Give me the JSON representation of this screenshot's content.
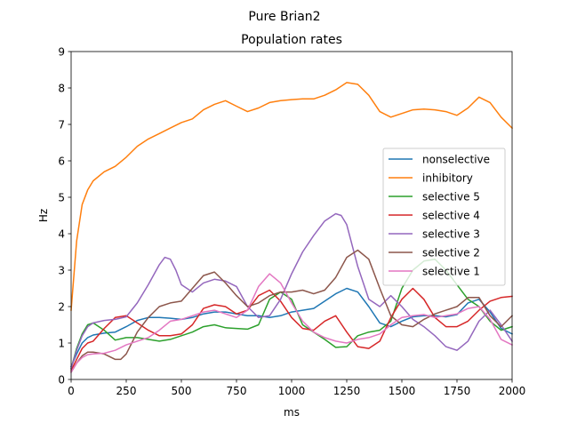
{
  "suptitle": "Pure Brian2",
  "chart_data": {
    "type": "line",
    "title": "Population rates",
    "xlabel": "ms",
    "ylabel": "Hz",
    "xlim": [
      0,
      2000
    ],
    "ylim": [
      0,
      9
    ],
    "xticks": [
      0,
      250,
      500,
      750,
      1000,
      1250,
      1500,
      1750,
      2000
    ],
    "yticks": [
      0,
      1,
      2,
      3,
      4,
      5,
      6,
      7,
      8,
      9
    ],
    "grid": false,
    "legend_position": "center-right",
    "series": [
      {
        "name": "nonselective",
        "color": "#1f77b4",
        "x": [
          0,
          25,
          50,
          75,
          100,
          150,
          200,
          250,
          300,
          350,
          400,
          450,
          500,
          550,
          600,
          650,
          700,
          750,
          800,
          850,
          900,
          950,
          1000,
          1050,
          1100,
          1150,
          1200,
          1250,
          1300,
          1350,
          1400,
          1450,
          1500,
          1550,
          1600,
          1650,
          1700,
          1750,
          1800,
          1850,
          1900,
          1950,
          2000
        ],
        "values": [
          0.35,
          0.7,
          1.0,
          1.15,
          1.22,
          1.27,
          1.3,
          1.45,
          1.62,
          1.7,
          1.7,
          1.68,
          1.65,
          1.7,
          1.8,
          1.85,
          1.85,
          1.8,
          1.75,
          1.75,
          1.7,
          1.75,
          1.85,
          1.9,
          1.95,
          2.15,
          2.35,
          2.5,
          2.4,
          2.0,
          1.55,
          1.45,
          1.6,
          1.72,
          1.75,
          1.75,
          1.72,
          1.78,
          2.1,
          2.2,
          1.85,
          1.4,
          1.25
        ]
      },
      {
        "name": "inhibitory",
        "color": "#ff7f0e",
        "x": [
          0,
          25,
          50,
          75,
          100,
          150,
          200,
          250,
          300,
          350,
          400,
          450,
          500,
          550,
          600,
          650,
          700,
          750,
          800,
          850,
          900,
          950,
          1000,
          1050,
          1100,
          1150,
          1200,
          1250,
          1300,
          1350,
          1400,
          1450,
          1500,
          1550,
          1600,
          1650,
          1700,
          1750,
          1800,
          1850,
          1900,
          1950,
          2000
        ],
        "values": [
          1.9,
          3.8,
          4.8,
          5.2,
          5.45,
          5.7,
          5.85,
          6.1,
          6.4,
          6.6,
          6.75,
          6.9,
          7.05,
          7.15,
          7.4,
          7.55,
          7.65,
          7.5,
          7.35,
          7.45,
          7.6,
          7.65,
          7.68,
          7.7,
          7.7,
          7.8,
          7.95,
          8.15,
          8.1,
          7.8,
          7.35,
          7.2,
          7.3,
          7.4,
          7.42,
          7.4,
          7.35,
          7.25,
          7.45,
          7.75,
          7.6,
          7.2,
          6.9
        ]
      },
      {
        "name": "selective 5",
        "color": "#2ca02c",
        "x": [
          0,
          25,
          50,
          75,
          100,
          150,
          200,
          250,
          300,
          350,
          400,
          450,
          500,
          550,
          600,
          650,
          700,
          750,
          800,
          850,
          900,
          950,
          1000,
          1050,
          1100,
          1150,
          1200,
          1250,
          1300,
          1350,
          1400,
          1450,
          1500,
          1550,
          1600,
          1650,
          1700,
          1750,
          1800,
          1850,
          1900,
          1950,
          2000
        ],
        "values": [
          0.3,
          0.85,
          1.25,
          1.5,
          1.55,
          1.35,
          1.08,
          1.15,
          1.15,
          1.1,
          1.05,
          1.1,
          1.2,
          1.3,
          1.45,
          1.5,
          1.42,
          1.4,
          1.38,
          1.5,
          2.2,
          2.4,
          2.2,
          1.5,
          1.3,
          1.1,
          0.88,
          0.9,
          1.2,
          1.3,
          1.35,
          1.6,
          2.5,
          3.0,
          3.25,
          3.3,
          3.0,
          2.6,
          2.2,
          2.0,
          1.6,
          1.35,
          1.45
        ]
      },
      {
        "name": "selective 4",
        "color": "#d62728",
        "x": [
          0,
          25,
          50,
          75,
          100,
          150,
          200,
          250,
          300,
          350,
          400,
          450,
          500,
          550,
          600,
          650,
          700,
          750,
          800,
          850,
          900,
          950,
          1000,
          1050,
          1100,
          1150,
          1200,
          1250,
          1300,
          1350,
          1400,
          1450,
          1500,
          1550,
          1600,
          1650,
          1700,
          1750,
          1800,
          1850,
          1900,
          1950,
          2000
        ],
        "values": [
          0.25,
          0.55,
          0.85,
          1.0,
          1.05,
          1.4,
          1.7,
          1.75,
          1.55,
          1.35,
          1.2,
          1.2,
          1.25,
          1.5,
          1.95,
          2.05,
          2.0,
          1.8,
          1.9,
          2.3,
          2.45,
          2.15,
          1.7,
          1.4,
          1.35,
          1.6,
          1.75,
          1.3,
          0.9,
          0.85,
          1.05,
          1.7,
          2.2,
          2.5,
          2.2,
          1.7,
          1.45,
          1.45,
          1.6,
          1.9,
          2.15,
          2.25,
          2.28
        ]
      },
      {
        "name": "selective 3",
        "color": "#9467bd",
        "x": [
          0,
          25,
          50,
          75,
          100,
          150,
          200,
          250,
          300,
          350,
          400,
          425,
          450,
          475,
          500,
          550,
          600,
          650,
          700,
          750,
          800,
          850,
          900,
          950,
          1000,
          1050,
          1100,
          1150,
          1200,
          1225,
          1250,
          1300,
          1350,
          1400,
          1450,
          1500,
          1550,
          1600,
          1650,
          1700,
          1750,
          1800,
          1850,
          1900,
          1950,
          2000
        ],
        "values": [
          0.3,
          0.8,
          1.2,
          1.45,
          1.55,
          1.62,
          1.65,
          1.72,
          2.1,
          2.6,
          3.15,
          3.35,
          3.3,
          3.0,
          2.6,
          2.4,
          2.65,
          2.75,
          2.7,
          2.55,
          2.0,
          1.7,
          1.75,
          2.2,
          2.9,
          3.5,
          3.95,
          4.35,
          4.55,
          4.5,
          4.25,
          3.1,
          2.2,
          2.0,
          2.3,
          2.0,
          1.65,
          1.45,
          1.2,
          0.9,
          0.8,
          1.05,
          1.6,
          1.9,
          1.5,
          1.05
        ]
      },
      {
        "name": "selective 2",
        "color": "#8c564b",
        "x": [
          0,
          25,
          50,
          75,
          100,
          150,
          200,
          225,
          250,
          300,
          350,
          400,
          450,
          500,
          550,
          600,
          650,
          700,
          750,
          800,
          850,
          900,
          950,
          1000,
          1050,
          1100,
          1150,
          1200,
          1250,
          1300,
          1350,
          1400,
          1450,
          1500,
          1550,
          1600,
          1650,
          1700,
          1750,
          1800,
          1850,
          1900,
          1950,
          2000
        ],
        "values": [
          0.2,
          0.45,
          0.65,
          0.75,
          0.75,
          0.7,
          0.55,
          0.55,
          0.7,
          1.3,
          1.7,
          2.0,
          2.1,
          2.15,
          2.5,
          2.85,
          2.95,
          2.65,
          2.3,
          2.0,
          2.1,
          2.3,
          2.4,
          2.4,
          2.45,
          2.35,
          2.45,
          2.8,
          3.35,
          3.55,
          3.3,
          2.5,
          1.75,
          1.5,
          1.45,
          1.65,
          1.8,
          1.9,
          2.0,
          2.25,
          2.25,
          1.75,
          1.45,
          1.75
        ]
      },
      {
        "name": "selective 1",
        "color": "#e377c2",
        "x": [
          0,
          25,
          50,
          75,
          100,
          150,
          200,
          250,
          300,
          350,
          400,
          450,
          500,
          550,
          600,
          650,
          700,
          750,
          800,
          850,
          900,
          950,
          1000,
          1050,
          1100,
          1150,
          1200,
          1250,
          1300,
          1350,
          1400,
          1450,
          1500,
          1550,
          1600,
          1650,
          1700,
          1750,
          1800,
          1850,
          1900,
          1950,
          2000
        ],
        "values": [
          0.2,
          0.45,
          0.6,
          0.68,
          0.7,
          0.72,
          0.8,
          0.95,
          1.05,
          1.15,
          1.35,
          1.6,
          1.65,
          1.75,
          1.85,
          1.9,
          1.8,
          1.7,
          1.9,
          2.55,
          2.9,
          2.65,
          2.1,
          1.6,
          1.3,
          1.15,
          1.05,
          1.0,
          1.1,
          1.15,
          1.25,
          1.5,
          1.7,
          1.75,
          1.78,
          1.7,
          1.75,
          1.8,
          1.95,
          2.0,
          1.65,
          1.1,
          0.95
        ]
      }
    ]
  }
}
